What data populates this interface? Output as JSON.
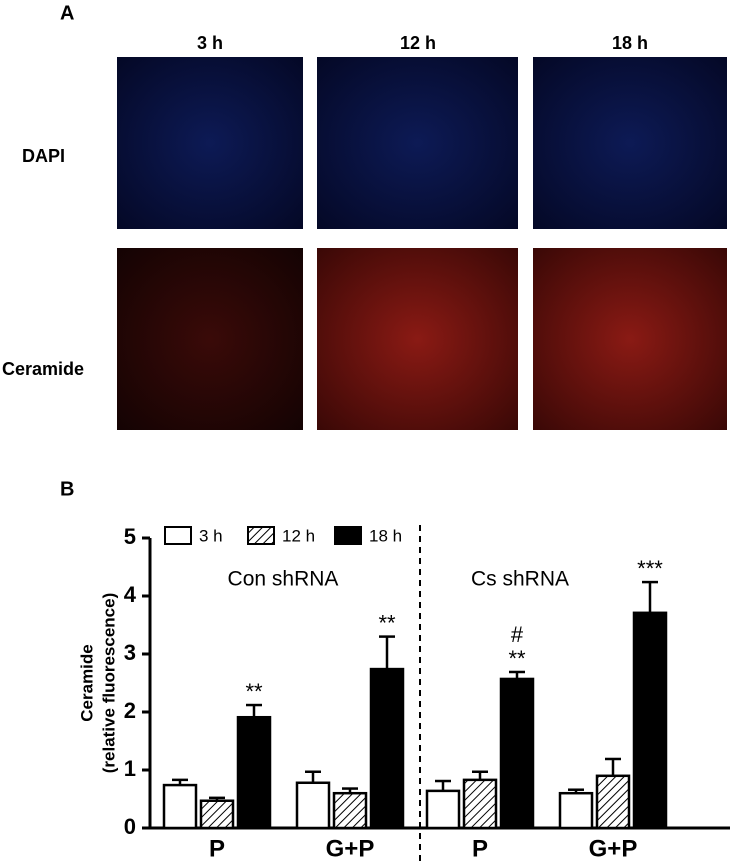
{
  "panel_a": {
    "label": "A",
    "columns": [
      "3 h",
      "12 h",
      "18 h"
    ],
    "rows": [
      "DAPI",
      "Ceramide"
    ]
  },
  "panel_b_label": "B",
  "chart_data": {
    "type": "bar",
    "ylabel": [
      "Ceramide",
      "(relative fluorescence)"
    ],
    "categories": [
      "P",
      "G+P",
      "P",
      "G+P"
    ],
    "groups": [
      "Con shRNA",
      "Cs shRNA"
    ],
    "ylim": [
      0,
      5
    ],
    "yticks": [
      0,
      1,
      2,
      3,
      4,
      5
    ],
    "series": [
      {
        "name": "3 h",
        "color": "#ffffff",
        "hatch": false,
        "values": [
          0.74,
          0.78,
          0.64,
          0.6
        ],
        "errors": [
          0.09,
          0.19,
          0.17,
          0.06
        ]
      },
      {
        "name": "12 h",
        "color": "#ffffff",
        "hatch": true,
        "values": [
          0.47,
          0.6,
          0.83,
          0.9
        ],
        "errors": [
          0.05,
          0.08,
          0.14,
          0.29
        ]
      },
      {
        "name": "18 h",
        "color": "#000000",
        "hatch": false,
        "values": [
          1.91,
          2.74,
          2.57,
          3.71
        ],
        "errors": [
          0.21,
          0.56,
          0.12,
          0.53
        ],
        "labels": [
          [
            "**"
          ],
          [
            "**"
          ],
          [
            "#",
            "**"
          ],
          [
            "***"
          ]
        ]
      }
    ]
  }
}
